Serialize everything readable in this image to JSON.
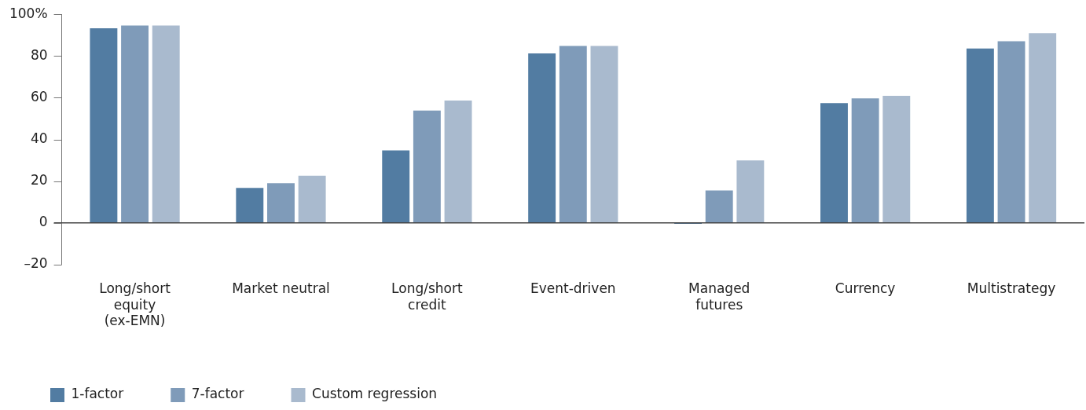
{
  "chart_data": {
    "type": "bar",
    "categories": [
      "Long/short\nequity\n(ex-EMN)",
      "Market neutral",
      "Long/short\ncredit",
      "Event-driven",
      "Managed\nfutures",
      "Currency",
      "Multistrategy"
    ],
    "series": [
      {
        "name": "1-factor",
        "color": "#527ca2",
        "values": [
          93.3,
          16.7,
          34.7,
          81.2,
          -0.5,
          57.4,
          83.6
        ]
      },
      {
        "name": "7-factor",
        "color": "#7f9bb9",
        "values": [
          94.6,
          19,
          53.8,
          84.8,
          15.5,
          59.7,
          87.1
        ]
      },
      {
        "name": "Custom regression",
        "color": "#a9bace",
        "values": [
          94.6,
          22.6,
          58.6,
          84.8,
          29.9,
          60.9,
          90.9
        ]
      }
    ],
    "ylim": [
      -20,
      100
    ],
    "yticks": [
      {
        "value": -20,
        "label": "–20"
      },
      0,
      20,
      40,
      60,
      80,
      {
        "value": 100,
        "label": "100%"
      }
    ],
    "ref_lines": [
      {
        "axis": "y",
        "value": 0,
        "color": "#444444"
      }
    ],
    "grid": false,
    "legend": "bottom left"
  }
}
